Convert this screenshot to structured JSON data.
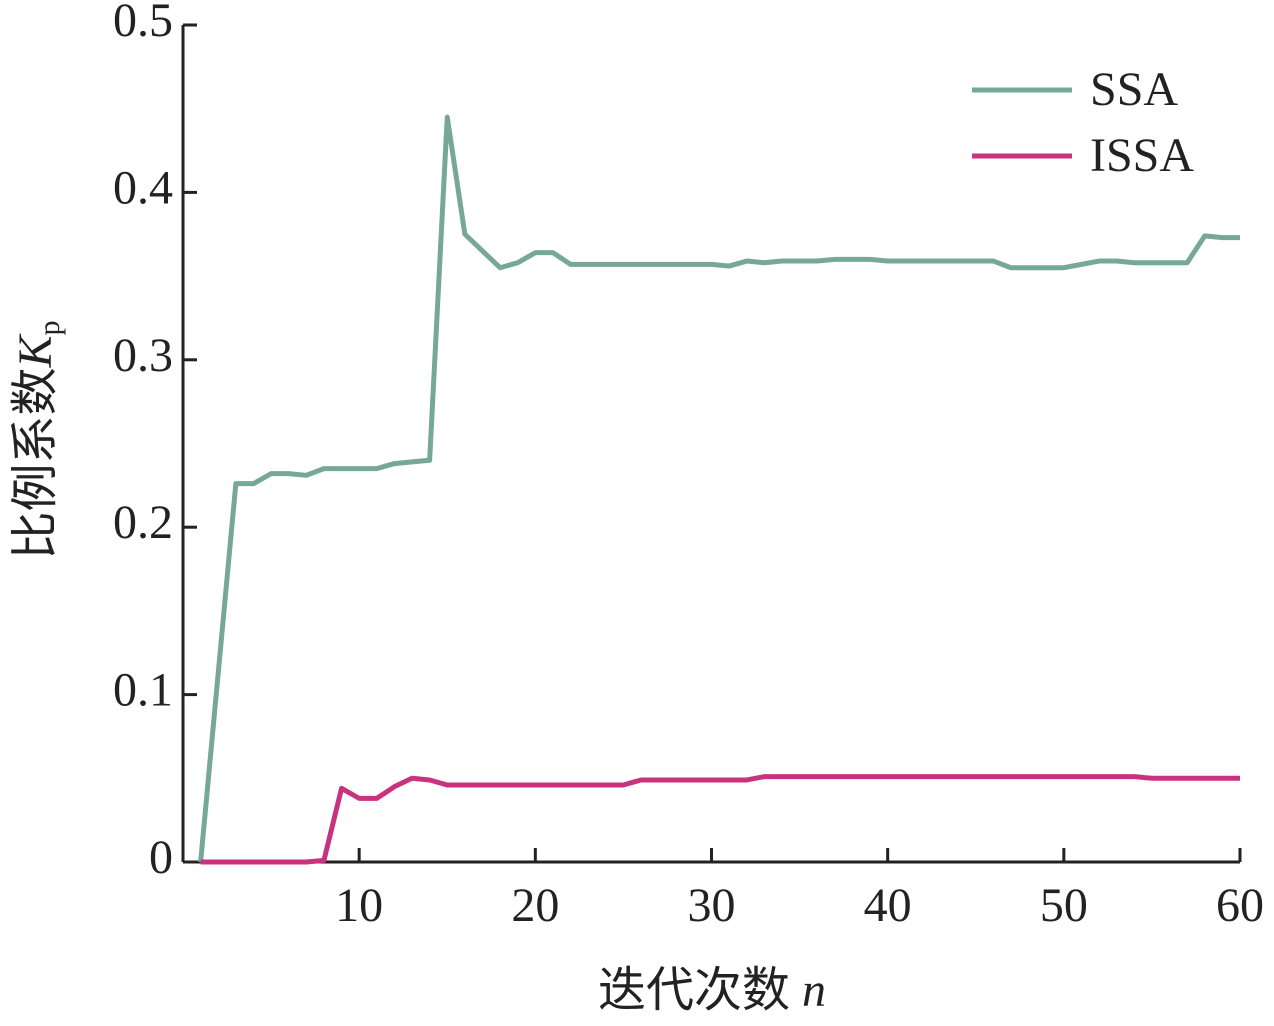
{
  "chart_data": {
    "type": "line",
    "xlabel_parts": [
      "迭代次数",
      "n"
    ],
    "ylabel_parts": [
      "比例系数",
      "K",
      "p"
    ],
    "x": [
      1,
      2,
      3,
      4,
      5,
      6,
      7,
      8,
      9,
      10,
      11,
      12,
      13,
      14,
      15,
      16,
      17,
      18,
      19,
      20,
      21,
      22,
      23,
      24,
      25,
      26,
      27,
      28,
      29,
      30,
      31,
      32,
      33,
      34,
      35,
      36,
      37,
      38,
      39,
      40,
      41,
      42,
      43,
      44,
      45,
      46,
      47,
      48,
      49,
      50,
      51,
      52,
      53,
      54,
      55,
      56,
      57,
      58,
      59,
      60
    ],
    "series": [
      {
        "name": "SSA",
        "color": "#76a898",
        "values": [
          0,
          0.113,
          0.226,
          0.226,
          0.232,
          0.232,
          0.231,
          0.235,
          0.235,
          0.235,
          0.235,
          0.238,
          0.239,
          0.24,
          0.445,
          0.375,
          0.365,
          0.355,
          0.358,
          0.364,
          0.364,
          0.357,
          0.357,
          0.357,
          0.357,
          0.357,
          0.357,
          0.357,
          0.357,
          0.357,
          0.356,
          0.359,
          0.358,
          0.359,
          0.359,
          0.359,
          0.36,
          0.36,
          0.36,
          0.359,
          0.359,
          0.359,
          0.359,
          0.359,
          0.359,
          0.359,
          0.355,
          0.355,
          0.355,
          0.355,
          0.357,
          0.359,
          0.359,
          0.358,
          0.358,
          0.358,
          0.358,
          0.374,
          0.373,
          0.373
        ]
      },
      {
        "name": "ISSA",
        "color": "#c8327f",
        "values": [
          0,
          0,
          0,
          0,
          0,
          0,
          0,
          0.001,
          0.044,
          0.038,
          0.038,
          0.045,
          0.05,
          0.049,
          0.046,
          0.046,
          0.046,
          0.046,
          0.046,
          0.046,
          0.046,
          0.046,
          0.046,
          0.046,
          0.046,
          0.049,
          0.049,
          0.049,
          0.049,
          0.049,
          0.049,
          0.049,
          0.051,
          0.051,
          0.051,
          0.051,
          0.051,
          0.051,
          0.051,
          0.051,
          0.051,
          0.051,
          0.051,
          0.051,
          0.051,
          0.051,
          0.051,
          0.051,
          0.051,
          0.051,
          0.051,
          0.051,
          0.051,
          0.051,
          0.05,
          0.05,
          0.05,
          0.05,
          0.05,
          0.05
        ]
      }
    ],
    "xlim": [
      0,
      60
    ],
    "xticks": [
      10,
      20,
      30,
      40,
      50,
      60
    ],
    "ylim": [
      0,
      0.5
    ],
    "yticks": [
      0,
      0.1,
      0.2,
      0.3,
      0.4,
      0.5
    ],
    "legend": "upper-right",
    "grid": false
  }
}
